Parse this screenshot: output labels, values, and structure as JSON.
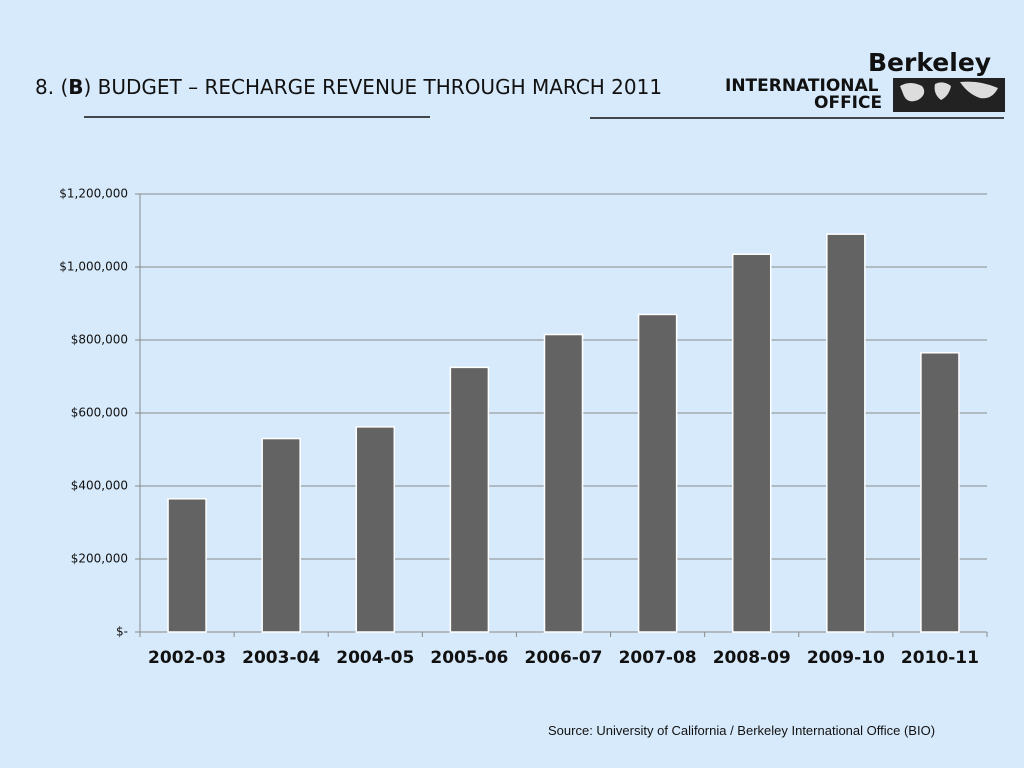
{
  "header": {
    "title_parts": [
      "8. (",
      "B",
      ") BUDGET – RECHARGE REVENUE THROUGH MARCH 2011"
    ],
    "logo": [
      "Berkeley",
      "INTERNATIONAL",
      "OFFICE"
    ]
  },
  "chart_data": {
    "type": "bar",
    "categories": [
      "2002-03",
      "2003-04",
      "2004-05",
      "2005-06",
      "2006-07",
      "2007-08",
      "2008-09",
      "2009-10",
      "2010-11"
    ],
    "values": [
      365000,
      530000,
      562000,
      725000,
      815000,
      870000,
      1035000,
      1090000,
      765000
    ],
    "color": "#636363",
    "ylim": [
      0,
      1200000
    ],
    "yticks": [
      {
        "value": 0,
        "label": "$-"
      },
      {
        "value": 200000,
        "label": "$200,000"
      },
      {
        "value": 400000,
        "label": "$400,000"
      },
      {
        "value": 600000,
        "label": "$600,000"
      },
      {
        "value": 800000,
        "label": "$800,000"
      },
      {
        "value": 1000000,
        "label": "$1,000,000"
      },
      {
        "value": 1200000,
        "label": "$1,200,000"
      }
    ],
    "grid": true
  },
  "source": "Source:  University of California / Berkeley International Office (BIO)"
}
